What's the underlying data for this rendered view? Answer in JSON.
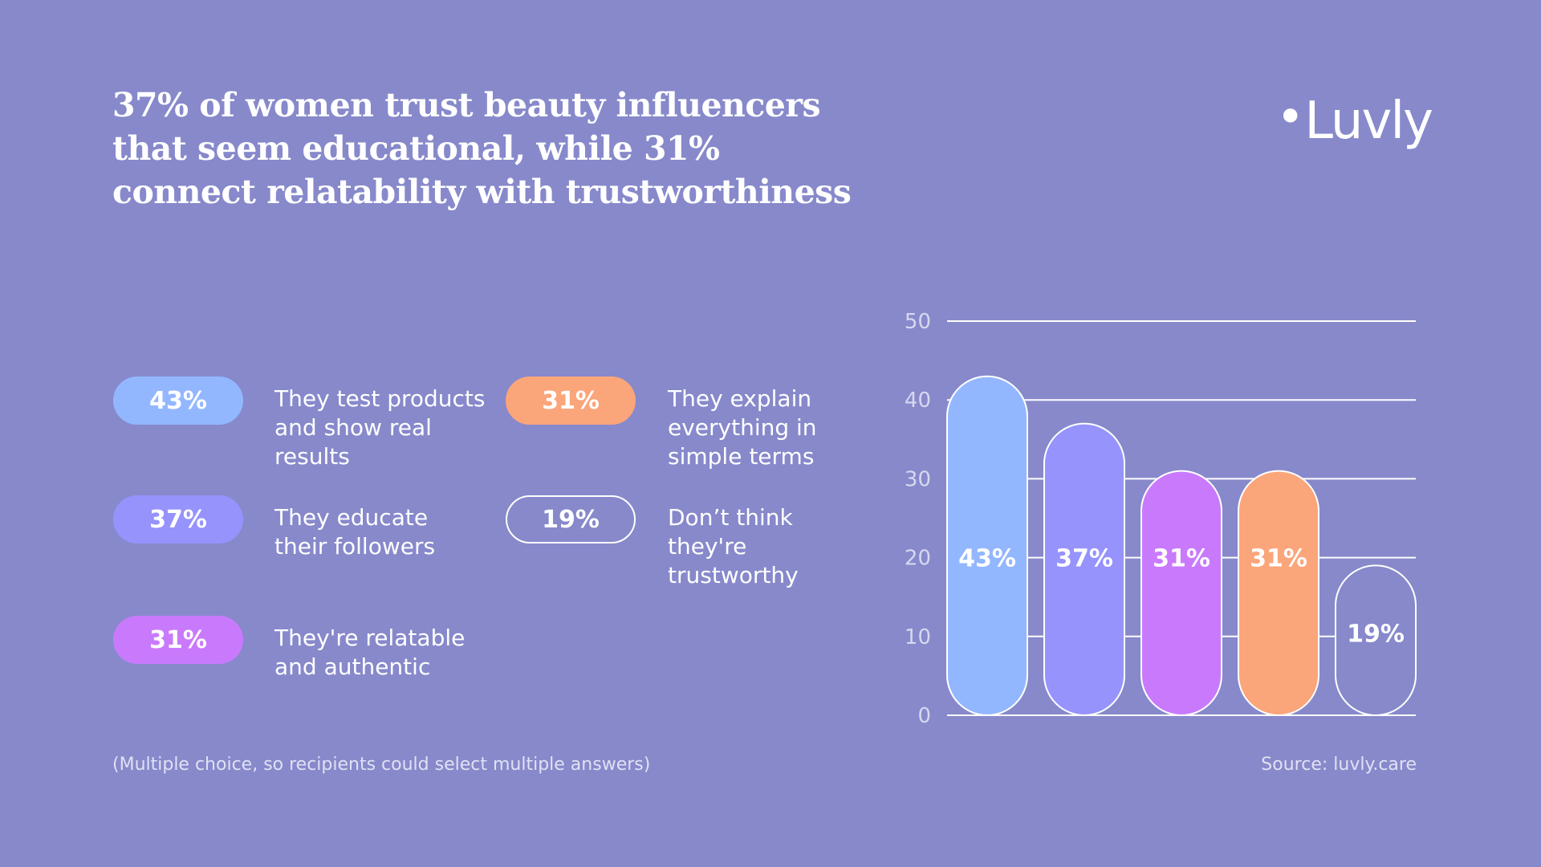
{
  "title": "37% of women trust beauty influencers that seem educational, while 31% connect relatability with trustworthiness",
  "brand": {
    "name": "Luvly",
    "dot": "•"
  },
  "legend": [
    {
      "value": "43%",
      "text": "They test products and show real results",
      "color": "#93b7ff",
      "style": "filled"
    },
    {
      "value": "31%",
      "text": "They explain everything in simple terms",
      "color": "#fba57a",
      "style": "filled"
    },
    {
      "value": "37%",
      "text": "They educate their followers",
      "color": "#9693fd",
      "style": "filled"
    },
    {
      "value": "19%",
      "text": "Don’t think they're trustworthy",
      "color": "#ffffff",
      "style": "outline"
    },
    {
      "value": "31%",
      "text": "They're relatable and authentic",
      "color": "#c97afc",
      "style": "filled"
    }
  ],
  "footnote": "(Multiple choice, so recipients could select multiple answers)",
  "source": "Source: luvly.care",
  "chart_data": {
    "type": "bar",
    "categories": [
      "They test products and show real results",
      "They educate their followers",
      "They're relatable and authentic",
      "They explain everything in simple terms",
      "Don’t think they're trustworthy"
    ],
    "values": [
      43,
      37,
      31,
      31,
      19
    ],
    "data_labels": [
      "43%",
      "37%",
      "31%",
      "31%",
      "19%"
    ],
    "colors": [
      "#93b7ff",
      "#9693fd",
      "#c97afc",
      "#fba57a",
      "none"
    ],
    "ylim": [
      0,
      50
    ],
    "yticks": [
      0,
      10,
      20,
      30,
      40,
      50
    ],
    "grid": true,
    "xlabel": "",
    "ylabel": ""
  }
}
